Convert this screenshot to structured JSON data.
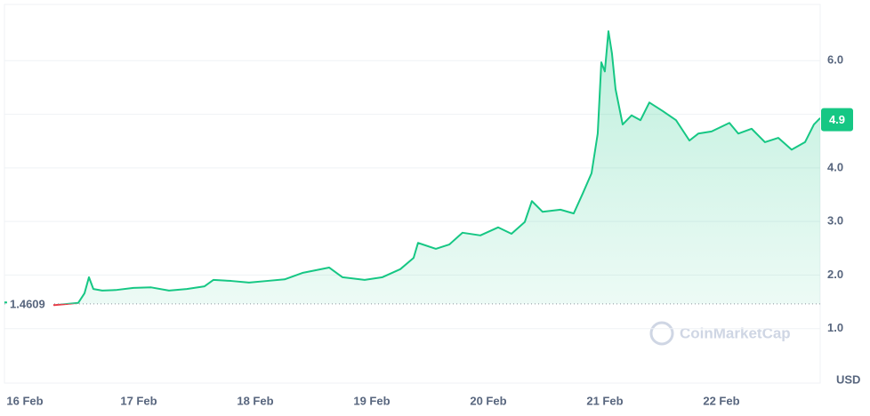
{
  "chart_data": {
    "type": "line",
    "x": [
      15.985,
      16.42,
      16.519,
      16.618,
      16.672,
      16.71,
      16.748,
      16.824,
      16.939,
      17.092,
      17.244,
      17.397,
      17.55,
      17.702,
      17.779,
      17.931,
      18.084,
      18.237,
      18.389,
      18.542,
      18.771,
      18.885,
      19.076,
      19.229,
      19.382,
      19.496,
      19.534,
      19.687,
      19.802,
      19.916,
      20.069,
      20.221,
      20.336,
      20.45,
      20.511,
      20.603,
      20.756,
      20.87,
      20.947,
      21.023,
      21.076,
      21.107,
      21.137,
      21.168,
      21.198,
      21.229,
      21.29,
      21.366,
      21.443,
      21.519,
      21.634,
      21.748,
      21.863,
      21.939,
      22.053,
      22.206,
      22.282,
      22.397,
      22.511,
      22.626,
      22.74,
      22.855,
      22.931,
      22.985
    ],
    "values": [
      1.49,
      1.44,
      1.46,
      1.48,
      1.66,
      1.96,
      1.74,
      1.71,
      1.72,
      1.76,
      1.77,
      1.71,
      1.74,
      1.79,
      1.91,
      1.89,
      1.86,
      1.89,
      1.92,
      2.04,
      2.14,
      1.96,
      1.91,
      1.96,
      2.11,
      2.32,
      2.6,
      2.49,
      2.57,
      2.79,
      2.74,
      2.89,
      2.77,
      2.99,
      3.38,
      3.18,
      3.22,
      3.15,
      3.52,
      3.9,
      4.64,
      5.97,
      5.8,
      6.55,
      6.14,
      5.47,
      4.81,
      4.98,
      4.89,
      5.22,
      5.06,
      4.89,
      4.51,
      4.64,
      4.68,
      4.84,
      4.64,
      4.73,
      4.48,
      4.56,
      4.34,
      4.48,
      4.81,
      4.93
    ],
    "color": "#16c784",
    "down_color": "#ea3943",
    "xlim": [
      15.985,
      22.985
    ],
    "xticks": [
      {
        "value": 16,
        "label": "16 Feb"
      },
      {
        "value": 17,
        "label": "17 Feb"
      },
      {
        "value": 18,
        "label": "18 Feb"
      },
      {
        "value": 19,
        "label": "19 Feb"
      },
      {
        "value": 20,
        "label": "20 Feb"
      },
      {
        "value": 21,
        "label": "21 Feb"
      },
      {
        "value": 22,
        "label": "22 Feb"
      }
    ],
    "ylim": [
      0,
      7.05
    ],
    "yticks": [
      {
        "value": 1,
        "label": "1.0"
      },
      {
        "value": 2,
        "label": "2.0"
      },
      {
        "value": 3,
        "label": "3.0"
      },
      {
        "value": 4,
        "label": "4.0"
      },
      {
        "value": 6,
        "label": "6.0"
      }
    ],
    "ygrid": [
      1,
      2,
      3,
      4,
      5,
      6
    ],
    "baseline": 1.4609,
    "current_price": 4.9,
    "currency": "USD",
    "watermark": "CoinMarketCap"
  }
}
